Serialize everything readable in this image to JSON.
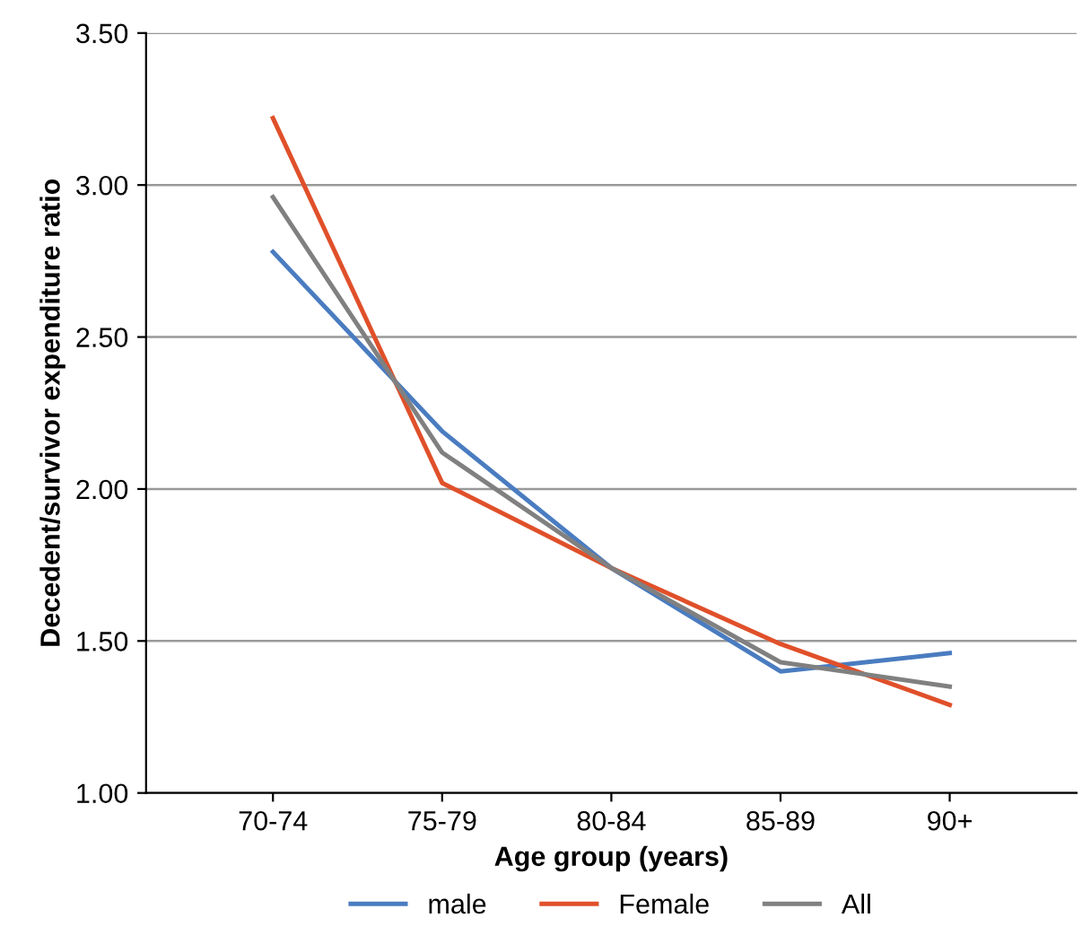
{
  "chart_data": {
    "type": "line",
    "xlabel": "Age group (years)",
    "ylabel": "Decedent/survivor expenditure ratio",
    "categories": [
      "70-74",
      "75-79",
      "80-84",
      "85-89",
      "90+"
    ],
    "series": [
      {
        "name": "male",
        "color": "#4a7cc0",
        "values": [
          2.78,
          2.19,
          1.74,
          1.4,
          1.46
        ]
      },
      {
        "name": "Female",
        "color": "#e0502a",
        "values": [
          3.22,
          2.02,
          1.74,
          1.49,
          1.29
        ]
      },
      {
        "name": "All",
        "color": "#808080",
        "values": [
          2.96,
          2.12,
          1.74,
          1.43,
          1.35
        ]
      }
    ],
    "ylim": [
      1.0,
      3.5
    ],
    "yticks": [
      {
        "value": 1.0,
        "label": "1.00"
      },
      {
        "value": 1.5,
        "label": "1.50"
      },
      {
        "value": 2.0,
        "label": "2.00"
      },
      {
        "value": 2.5,
        "label": "2.50"
      },
      {
        "value": 3.0,
        "label": "3.00"
      },
      {
        "value": 3.5,
        "label": "3.50"
      }
    ],
    "grid": "y",
    "legend": "bottom",
    "marker": "none",
    "line_style": "solid"
  }
}
